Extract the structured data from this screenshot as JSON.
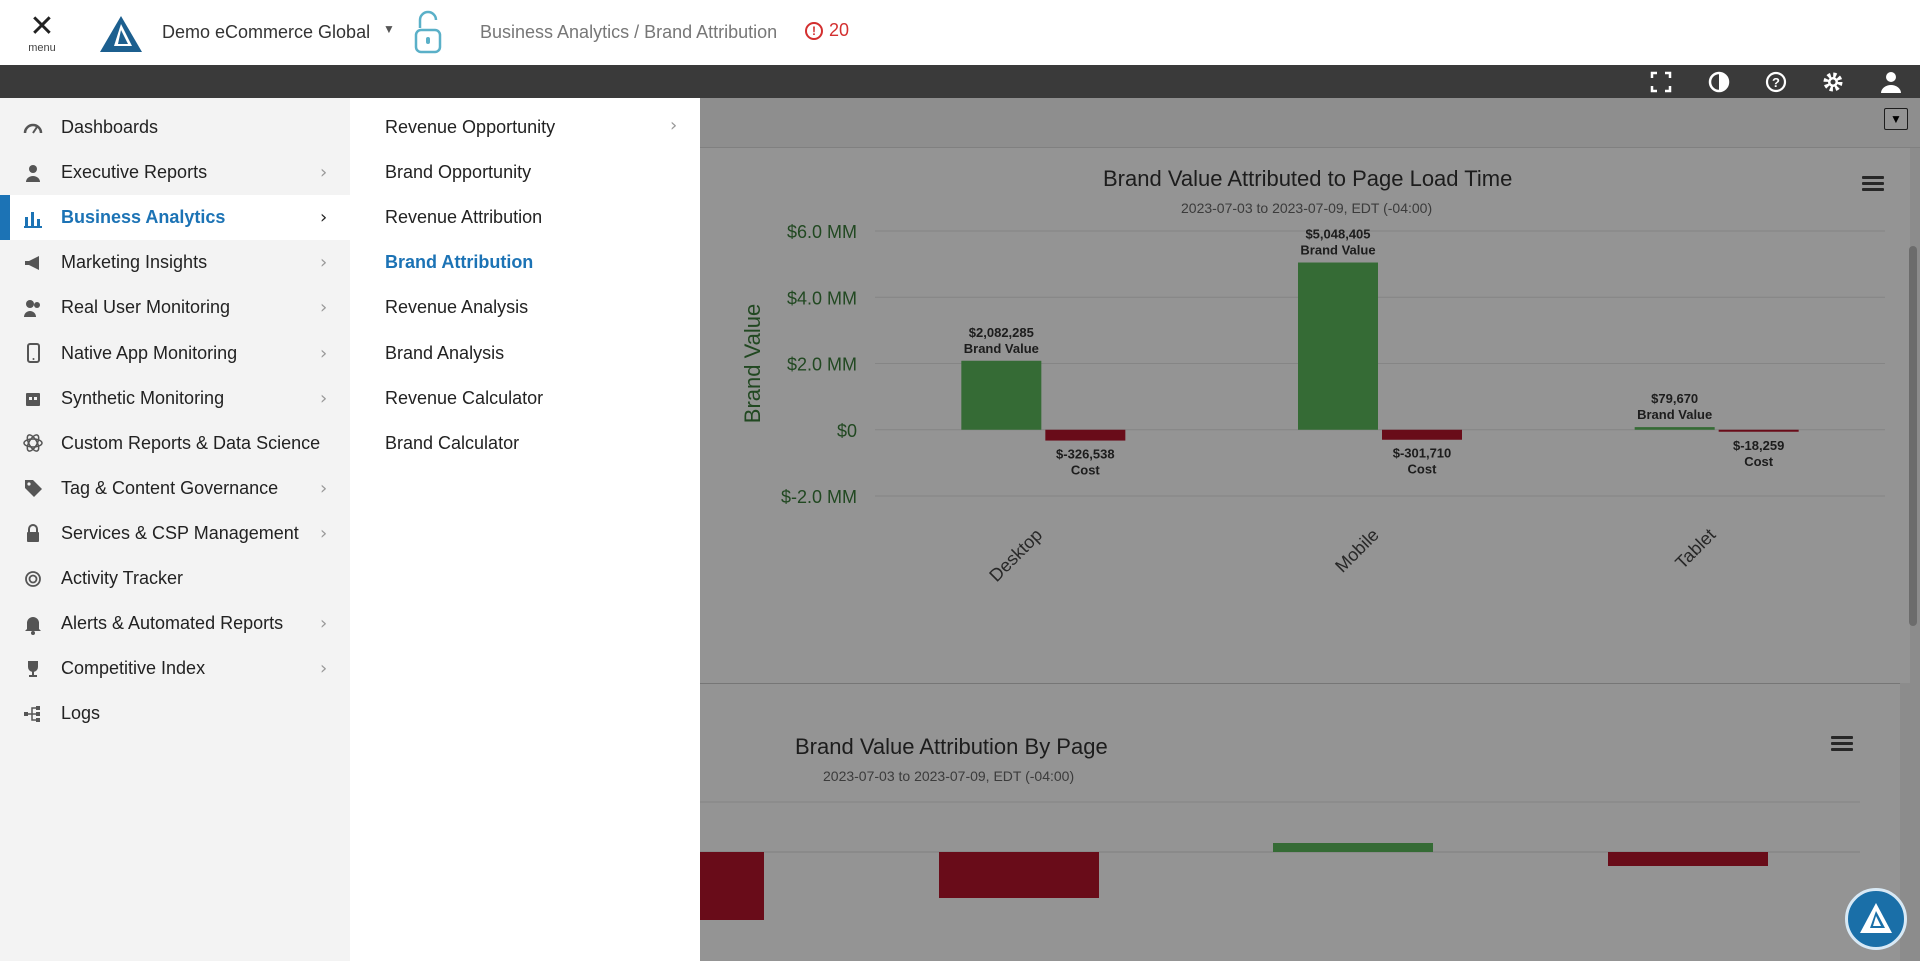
{
  "topbar": {
    "menu_label": "menu",
    "org_name": "Demo eCommerce Global",
    "breadcrumb": "Business Analytics / Brand Attribution",
    "alert_count": "20"
  },
  "toolbar_icons": [
    "fullscreen-icon",
    "contrast-icon",
    "help-icon",
    "settings-icon",
    "user-icon"
  ],
  "nav": {
    "items": [
      {
        "label": "Dashboards",
        "icon": "gauge-icon",
        "has_children": false
      },
      {
        "label": "Executive Reports",
        "icon": "person-icon",
        "has_children": true
      },
      {
        "label": "Business Analytics",
        "icon": "bar-chart-icon",
        "has_children": true,
        "active": true
      },
      {
        "label": "Marketing Insights",
        "icon": "megaphone-icon",
        "has_children": true
      },
      {
        "label": "Real User Monitoring",
        "icon": "users-icon",
        "has_children": true
      },
      {
        "label": "Native App Monitoring",
        "icon": "phone-icon",
        "has_children": true
      },
      {
        "label": "Synthetic Monitoring",
        "icon": "robot-icon",
        "has_children": true
      },
      {
        "label": "Custom Reports & Data Science",
        "icon": "atom-icon",
        "has_children": false
      },
      {
        "label": "Tag & Content Governance",
        "icon": "tag-icon",
        "has_children": true
      },
      {
        "label": "Services & CSP Management",
        "icon": "lock-icon",
        "has_children": true
      },
      {
        "label": "Activity Tracker",
        "icon": "fingerprint-icon",
        "has_children": false
      },
      {
        "label": "Alerts & Automated Reports",
        "icon": "bell-icon",
        "has_children": true
      },
      {
        "label": "Competitive Index",
        "icon": "trophy-icon",
        "has_children": true
      },
      {
        "label": "Logs",
        "icon": "tree-icon",
        "has_children": false
      }
    ]
  },
  "submenu": {
    "items": [
      {
        "label": "Revenue Opportunity",
        "has_children": true
      },
      {
        "label": "Brand Opportunity"
      },
      {
        "label": "Revenue Attribution"
      },
      {
        "label": "Brand Attribution",
        "active": true
      },
      {
        "label": "Revenue Analysis"
      },
      {
        "label": "Brand Analysis"
      },
      {
        "label": "Revenue Calculator"
      },
      {
        "label": "Brand Calculator"
      }
    ]
  },
  "chart1": {
    "title": "Brand Value Attributed to Page Load Time",
    "subtitle": "2023-07-03 to 2023-07-09, EDT (-04:00)",
    "ylabel": "Brand Value",
    "yticks": [
      "$6.0 MM",
      "$4.0 MM",
      "$2.0 MM",
      "$0",
      "$-2.0 MM"
    ]
  },
  "chart2": {
    "title": "Brand Value Attribution By Page",
    "subtitle": "2023-07-03 to 2023-07-09, EDT (-04:00)"
  },
  "chart_data": [
    {
      "type": "bar",
      "title": "Brand Value Attributed to Page Load Time",
      "subtitle": "2023-07-03 to 2023-07-09, EDT (-04:00)",
      "ylabel": "Brand Value",
      "categories": [
        "Desktop",
        "Mobile",
        "Tablet"
      ],
      "ylim": [
        -2000000,
        6000000
      ],
      "series": [
        {
          "name": "Brand Value",
          "values": [
            2082285,
            5048405,
            79670
          ],
          "labels": [
            "$2,082,285",
            "$5,048,405",
            "$79,670"
          ],
          "color": "#5cb85c"
        },
        {
          "name": "Cost",
          "values": [
            -326538,
            -301710,
            -18259
          ],
          "labels": [
            "$-326,538",
            "$-301,710",
            "$-18,259"
          ],
          "color": "#b5152b"
        }
      ]
    },
    {
      "type": "bar",
      "title": "Brand Value Attribution By Page",
      "subtitle": "2023-07-03 to 2023-07-09, EDT (-04:00)"
    }
  ],
  "colors": {
    "accent": "#1c73b5",
    "alert": "#d32f2f",
    "positive": "#5cb85c",
    "negative": "#b5152b"
  }
}
